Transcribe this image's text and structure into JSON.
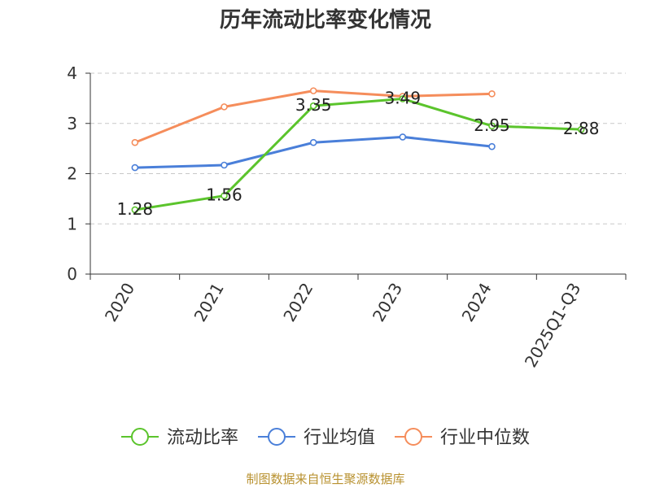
{
  "chart_data": {
    "type": "line",
    "title": "历年流动比率变化情况",
    "categories": [
      "2020",
      "2021",
      "2022",
      "2023",
      "2024",
      "2025Q1-Q3"
    ],
    "ylim": [
      0,
      4
    ],
    "yticks": [
      0,
      1,
      2,
      3,
      4
    ],
    "grid": true,
    "legend_position": "bottom",
    "series": [
      {
        "name": "流动比率",
        "color": "#5bc42c",
        "values": [
          1.28,
          1.56,
          3.35,
          3.49,
          2.95,
          2.88
        ],
        "labels": [
          "1.28",
          "1.56",
          "3.35",
          "3.49",
          "2.95",
          "2.88"
        ]
      },
      {
        "name": "行业均值",
        "color": "#4a7fd9",
        "values": [
          2.12,
          2.17,
          2.62,
          2.73,
          2.54,
          null
        ]
      },
      {
        "name": "行业中位数",
        "color": "#f58d5b",
        "values": [
          2.62,
          3.33,
          3.65,
          3.54,
          3.59,
          null
        ]
      }
    ]
  },
  "footer": {
    "source": "制图数据来自恒生聚源数据库"
  }
}
